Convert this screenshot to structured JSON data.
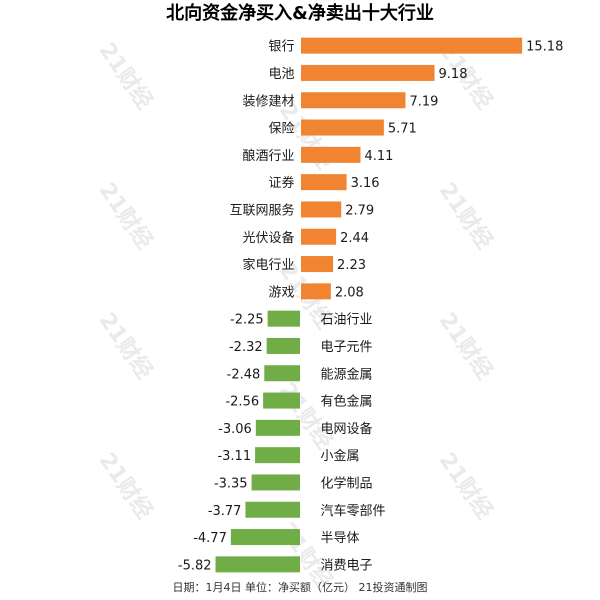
{
  "chart_data": {
    "type": "bar",
    "orientation": "horizontal",
    "title": "北向资金净买入&净卖出十大行业",
    "categories": [
      "银行",
      "电池",
      "装修建材",
      "保险",
      "酿酒行业",
      "证券",
      "互联网服务",
      "光伏设备",
      "家电行业",
      "游戏",
      "石油行业",
      "电子元件",
      "能源金属",
      "有色金属",
      "电网设备",
      "小金属",
      "化学制品",
      "汽车零部件",
      "半导体",
      "消费电子"
    ],
    "values": [
      15.18,
      9.18,
      7.19,
      5.71,
      4.11,
      3.16,
      2.79,
      2.44,
      2.23,
      2.08,
      -2.25,
      -2.32,
      -2.48,
      -2.56,
      -3.06,
      -3.11,
      -3.35,
      -3.77,
      -4.77,
      -5.82
    ],
    "value_labels": [
      "15.18",
      "9.18",
      "7.19",
      "5.71",
      "4.11",
      "3.16",
      "2.79",
      "2.44",
      "2.23",
      "2.08",
      "-2.25",
      "-2.32",
      "-2.48",
      "-2.56",
      "-3.06",
      "-3.11",
      "-3.35",
      "-3.77",
      "-4.77",
      "-5.82"
    ],
    "colors": {
      "positive": "#F08431",
      "negative": "#70AD47",
      "watermark": "#D9D9D9"
    },
    "xlim": [
      -6.0,
      15.5
    ],
    "grid": false,
    "legend": "none"
  },
  "footer": "日期：1月4日 单位：净买额（亿元） 21投资通制图",
  "watermark": "21财经"
}
